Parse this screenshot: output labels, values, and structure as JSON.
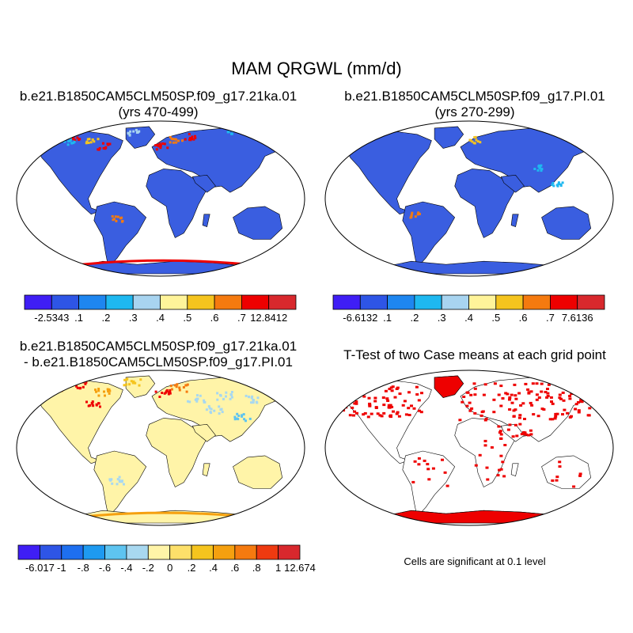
{
  "title": "MAM QRGWL (mm/d)",
  "colors": {
    "land_background_blue": "#3a5ee0",
    "diff_background_yellow": "#fff4a8",
    "significance_red": "#ee0000",
    "ocean": "#ffffff"
  },
  "panels": [
    {
      "id": "case1",
      "title_line1": "b.e21.B1850CAM5CLM50SP.f09_g17.21ka.01",
      "title_line2": "(yrs 470-499)",
      "fill": "#3a5ee0",
      "colorbar": {
        "colors": [
          "#3f1ef5",
          "#2e55e6",
          "#1e86f0",
          "#1eb8f0",
          "#a8d4f0",
          "#fff49a",
          "#f5c41e",
          "#f57a0f",
          "#ee0000",
          "#d8282d"
        ],
        "labels": [
          "-2.5343",
          ".1",
          ".2",
          ".3",
          ".4",
          ".5",
          ".6",
          ".7",
          "12.8412"
        ]
      }
    },
    {
      "id": "case2",
      "title_line1": "b.e21.B1850CAM5CLM50SP.f09_g17.PI.01",
      "title_line2": "(yrs 270-299)",
      "fill": "#3a5ee0",
      "colorbar": {
        "colors": [
          "#3f1ef5",
          "#2e55e6",
          "#1e86f0",
          "#1eb8f0",
          "#a8d4f0",
          "#fff49a",
          "#f5c41e",
          "#f57a0f",
          "#ee0000",
          "#d8282d"
        ],
        "labels": [
          "-6.6132",
          ".1",
          ".2",
          ".3",
          ".4",
          ".5",
          ".6",
          ".7",
          "7.6136"
        ]
      }
    },
    {
      "id": "diff",
      "title_line1": "b.e21.B1850CAM5CLM50SP.f09_g17.21ka.01",
      "title_line2": "- b.e21.B1850CAM5CLM50SP.f09_g17.PI.01",
      "fill": "#fff4a8",
      "colorbar": {
        "colors": [
          "#3f1ef5",
          "#2e55e6",
          "#1e6ff0",
          "#1e9af0",
          "#5ec4f0",
          "#a8d8f0",
          "#fff4a8",
          "#fde06a",
          "#f5c41e",
          "#f5a00f",
          "#f57a0f",
          "#ee3a10",
          "#d8282d"
        ],
        "labels": [
          "-6.017",
          "-1",
          "-.8",
          "-.6",
          "-.4",
          "-.2",
          "0",
          ".2",
          ".4",
          ".6",
          ".8",
          "1",
          "12.674"
        ]
      }
    },
    {
      "id": "ttest",
      "title_line1": "T-Test of two Case means at each grid point",
      "title_line2": "",
      "fill": "#ffffff",
      "note": "Cells are significant at 0.1 level"
    }
  ]
}
